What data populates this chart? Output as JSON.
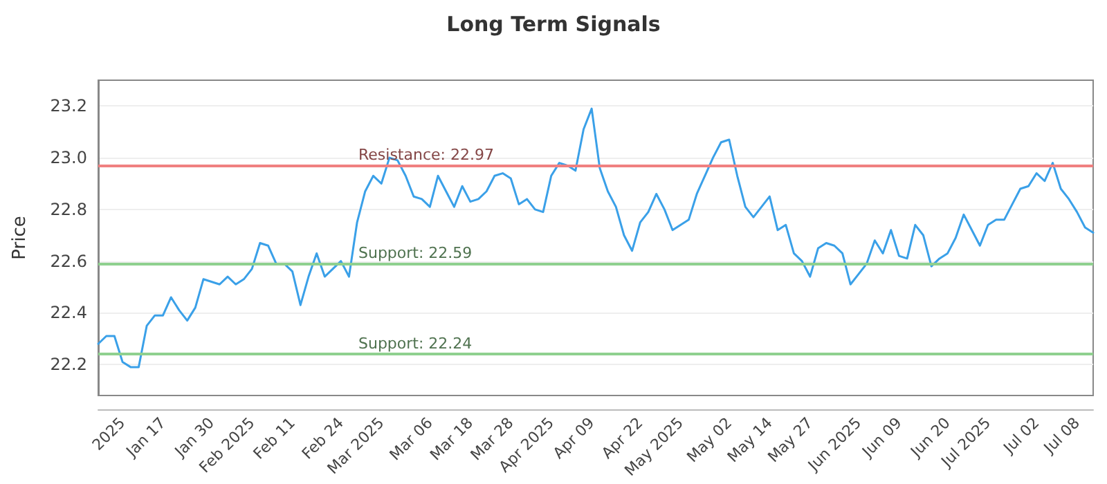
{
  "chart_data": {
    "type": "line",
    "title": "Long Term Signals",
    "ylabel": "Price",
    "categories": [
      null,
      null,
      null,
      "2025",
      null,
      null,
      null,
      null,
      "Jan 17",
      null,
      null,
      null,
      null,
      null,
      "Jan 30",
      null,
      null,
      null,
      null,
      "Feb 2025",
      null,
      null,
      null,
      null,
      "Feb 11",
      null,
      null,
      null,
      null,
      null,
      "Feb 24",
      null,
      null,
      null,
      null,
      "Mar 2025",
      null,
      null,
      null,
      null,
      null,
      "Mar 06",
      null,
      null,
      null,
      null,
      "Mar 18",
      null,
      null,
      null,
      null,
      "Mar 28",
      null,
      null,
      null,
      null,
      "Apr 2025",
      null,
      null,
      null,
      null,
      "Apr 09",
      null,
      null,
      null,
      null,
      null,
      "Apr 22",
      null,
      null,
      null,
      null,
      "May 2025",
      null,
      null,
      null,
      null,
      null,
      "May 02",
      null,
      null,
      null,
      null,
      "May 14",
      null,
      null,
      null,
      null,
      "May 27",
      null,
      null,
      null,
      null,
      null,
      "Jun 2025",
      null,
      null,
      null,
      null,
      "Jun 09",
      null,
      null,
      null,
      null,
      null,
      "Jun 20",
      null,
      null,
      null,
      null,
      "Jul 2025",
      null,
      null,
      null,
      null,
      null,
      "Jul 02",
      null,
      null,
      null,
      null,
      "Jul 08",
      null,
      null
    ],
    "series": [
      {
        "color": "#3aa0e8",
        "values": [
          22.28,
          22.31,
          22.31,
          22.21,
          22.19,
          22.19,
          22.35,
          22.39,
          22.39,
          22.46,
          22.41,
          22.37,
          22.42,
          22.53,
          22.52,
          22.51,
          22.54,
          22.51,
          22.53,
          22.57,
          22.67,
          22.66,
          22.59,
          22.59,
          22.56,
          22.43,
          22.54,
          22.63,
          22.54,
          22.57,
          22.6,
          22.54,
          22.75,
          22.87,
          22.93,
          22.9,
          23.0,
          22.99,
          22.93,
          22.85,
          22.84,
          22.81,
          22.93,
          22.87,
          22.81,
          22.89,
          22.83,
          22.84,
          22.87,
          22.93,
          22.94,
          22.92,
          22.82,
          22.84,
          22.8,
          22.79,
          22.93,
          22.98,
          22.97,
          22.95,
          23.11,
          23.19,
          22.96,
          22.87,
          22.81,
          22.7,
          22.64,
          22.75,
          22.79,
          22.86,
          22.8,
          22.72,
          22.74,
          22.76,
          22.86,
          22.93,
          23.0,
          23.06,
          23.07,
          22.93,
          22.81,
          22.77,
          22.81,
          22.85,
          22.72,
          22.74,
          22.63,
          22.6,
          22.54,
          22.65,
          22.67,
          22.66,
          22.63,
          22.51,
          22.55,
          22.59,
          22.68,
          22.63,
          22.72,
          22.62,
          22.61,
          22.74,
          22.7,
          22.58,
          22.61,
          22.63,
          22.69,
          22.78,
          22.72,
          22.66,
          22.74,
          22.76,
          22.76,
          22.82,
          22.88,
          22.89,
          22.94,
          22.91,
          22.98,
          22.88,
          22.84,
          22.79,
          22.73,
          22.71
        ]
      }
    ],
    "ylim": [
      22.08,
      23.3
    ],
    "yticks": [
      22.2,
      22.4,
      22.6,
      22.8,
      {
        "value": 23.0,
        "label": "23.0"
      },
      23.2
    ],
    "grid": "y",
    "marker": "none",
    "line_style": "solid",
    "ref_lines": [
      {
        "axis": "y",
        "value": 22.97,
        "label": "Resistance: 22.97",
        "color": "#f08080"
      },
      {
        "axis": "y",
        "value": 22.59,
        "label": "Support: 22.59",
        "color": "#8fd08f"
      },
      {
        "axis": "y",
        "value": 22.24,
        "label": "Support: 22.24",
        "color": "#8fd08f"
      }
    ]
  }
}
